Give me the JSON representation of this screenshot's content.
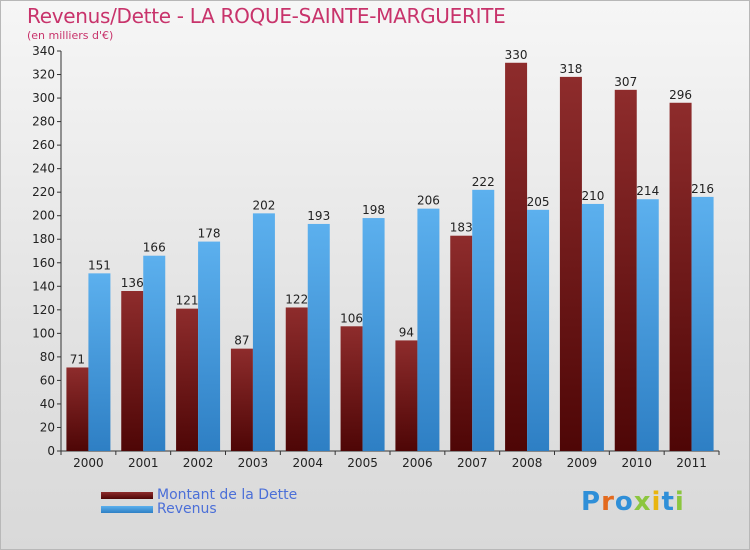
{
  "title": "Revenus/Dette - LA ROQUE-SAINTE-MARGUERITE",
  "subtitle": "(en milliers d'€)",
  "logo": "Proxiti",
  "colors": {
    "dette": "#7a1a1a",
    "revenus": "#4a9fe0",
    "title": "#c8336b",
    "legend_text": "#4b6fd8"
  },
  "chart_data": {
    "type": "bar",
    "categories": [
      "2000",
      "2001",
      "2002",
      "2003",
      "2004",
      "2005",
      "2006",
      "2007",
      "2008",
      "2009",
      "2010",
      "2011"
    ],
    "series": [
      {
        "name": "Montant de la Dette",
        "values": [
          71,
          136,
          121,
          87,
          122,
          106,
          94,
          183,
          330,
          318,
          307,
          296
        ]
      },
      {
        "name": "Revenus",
        "values": [
          151,
          166,
          178,
          202,
          193,
          198,
          206,
          222,
          205,
          210,
          214,
          216
        ]
      }
    ],
    "ylim": [
      0,
      340
    ],
    "yticks": [
      0,
      20,
      40,
      60,
      80,
      100,
      120,
      140,
      160,
      180,
      200,
      220,
      240,
      260,
      280,
      300,
      320,
      340
    ],
    "grid": false,
    "legend": "bottom-left"
  }
}
